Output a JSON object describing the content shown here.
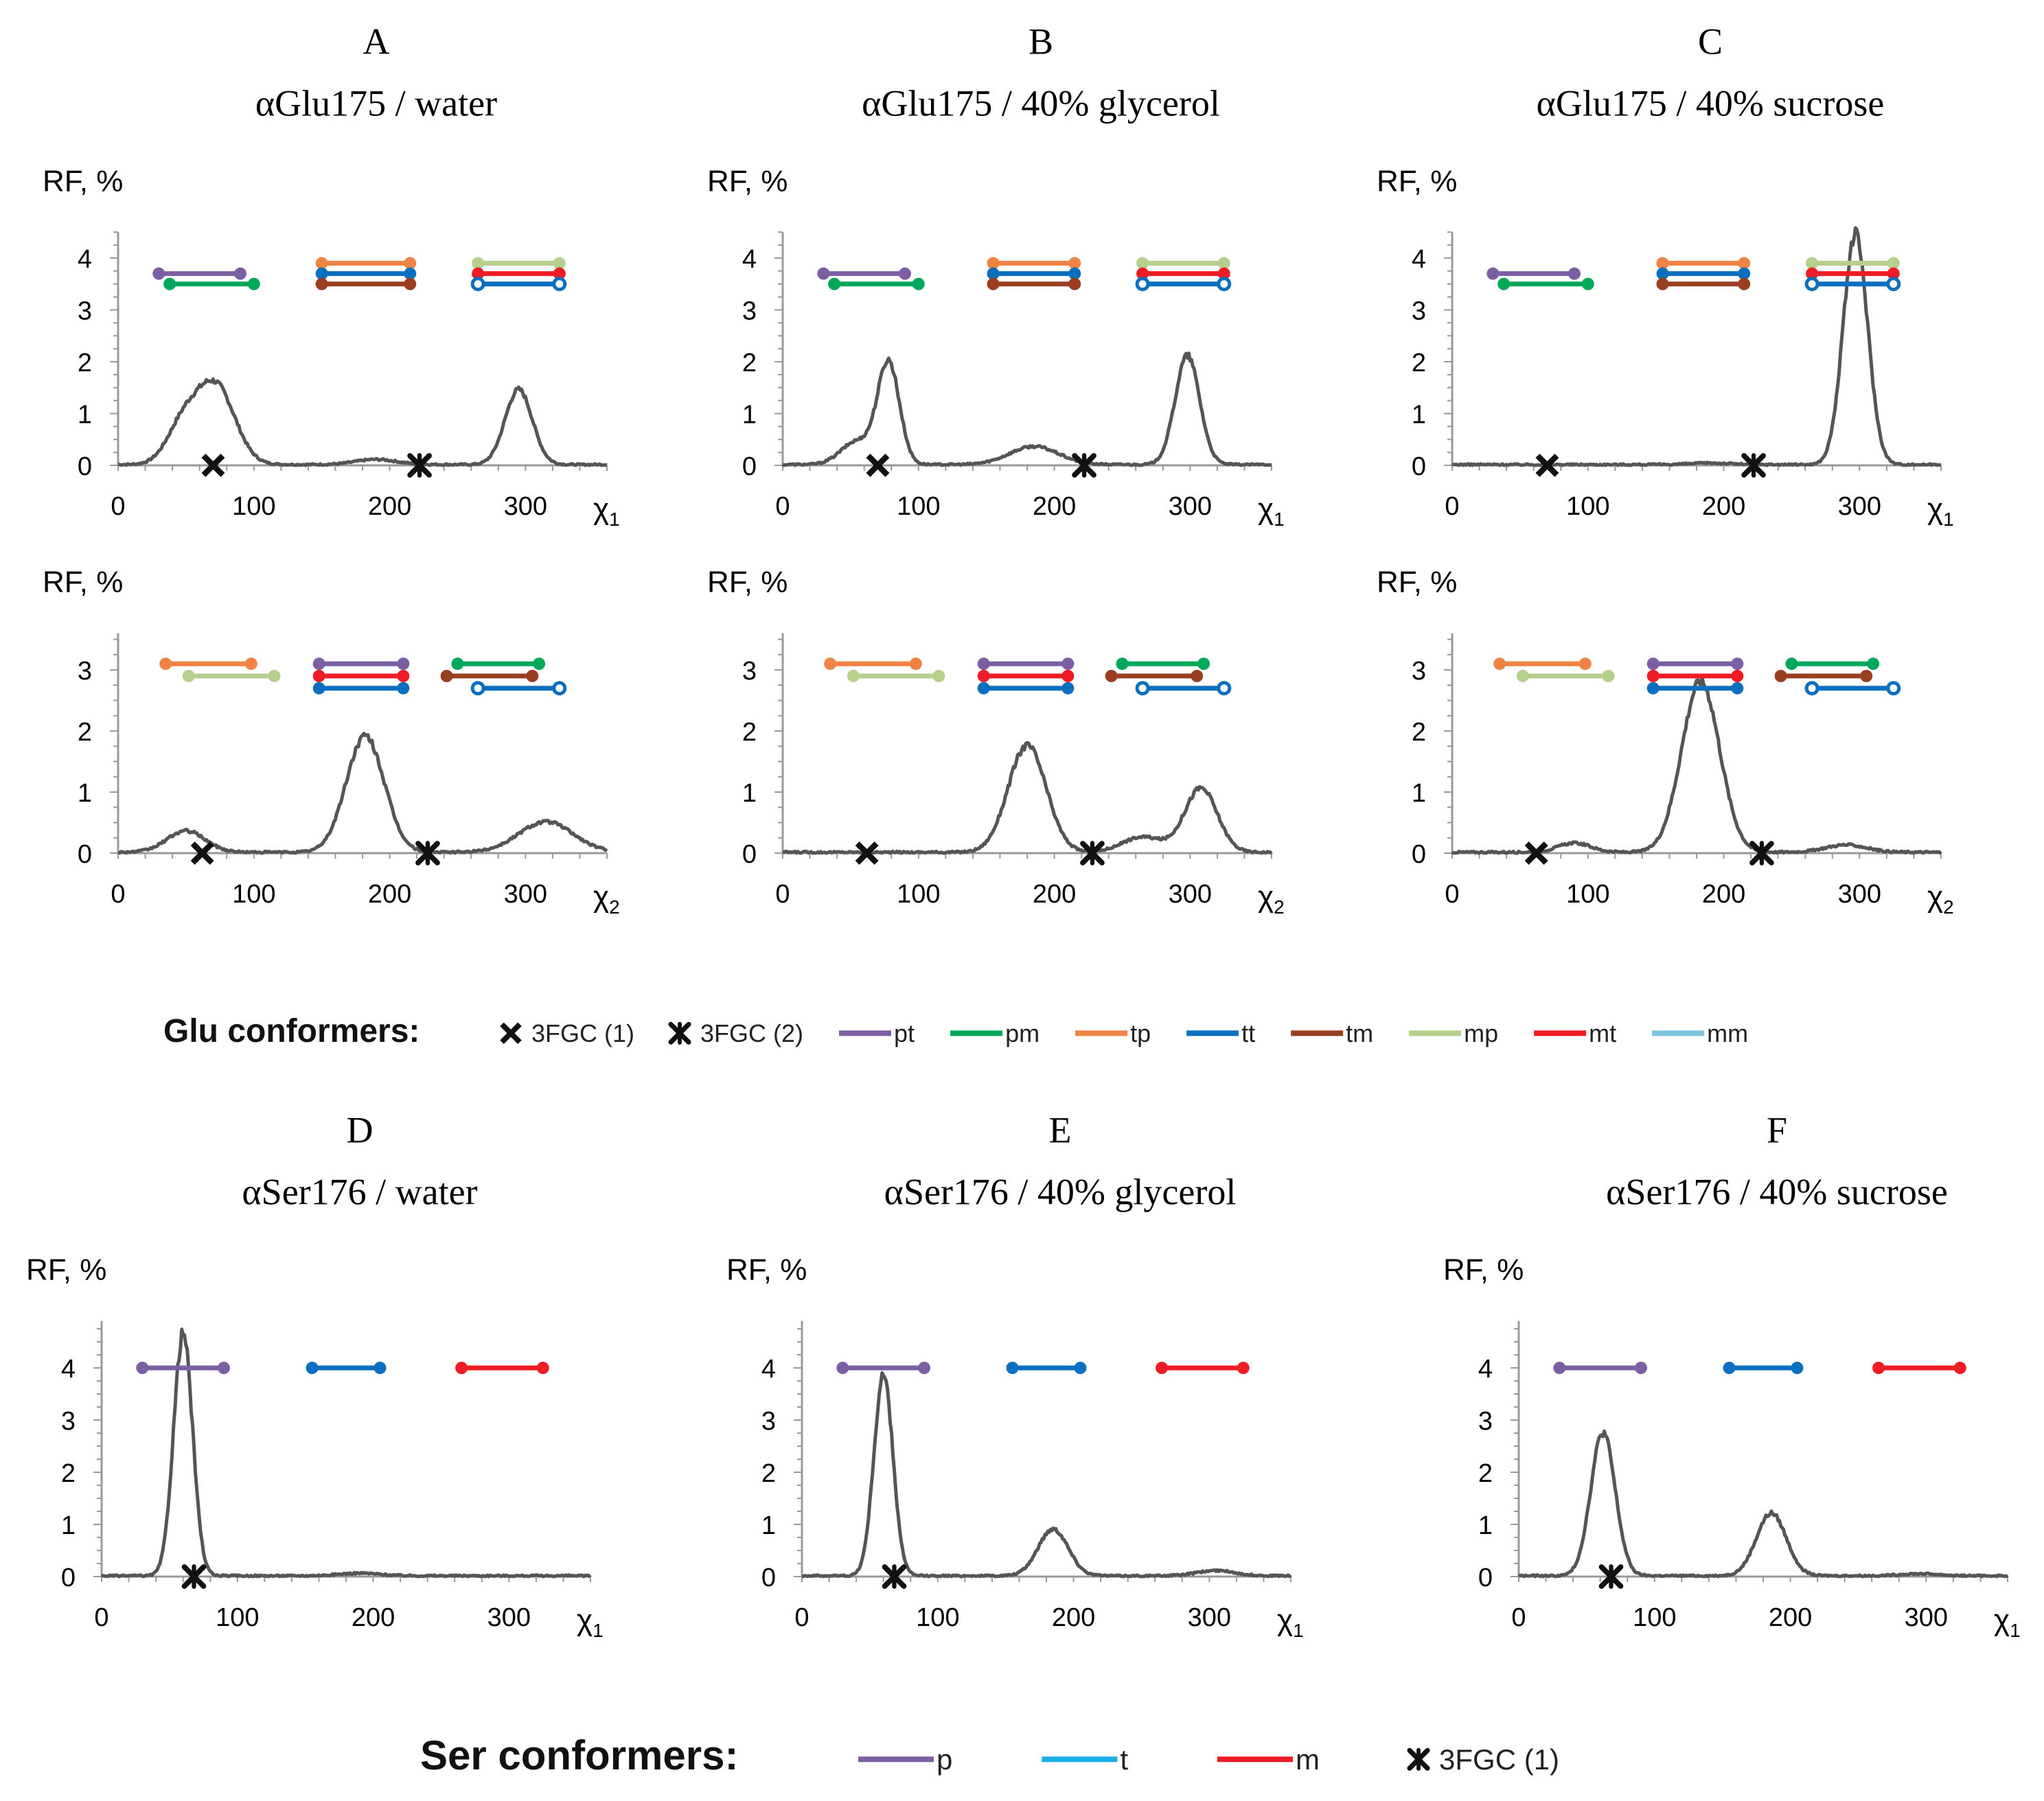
{
  "colors": {
    "pt": "#7b5fa2",
    "pm": "#00a85a",
    "tp": "#ee8344",
    "tt": "#0a6fbf",
    "tm": "#9a3e22",
    "mp": "#b5cf8c",
    "mt": "#ee1c24",
    "mm": "#7cc3dc",
    "p": "#7b5fa2",
    "t": "#1aaee6",
    "m": "#ee1c24",
    "curve": "#555555",
    "axis": "#999999",
    "marker": "#111111"
  },
  "legend_glu": {
    "title": "Glu conformers:",
    "items": [
      {
        "label": "3FGC (1)",
        "kind": "x",
        "color": "#111111"
      },
      {
        "label": "3FGC (2)",
        "kind": "star",
        "color": "#111111"
      },
      {
        "label": "pt",
        "kind": "line",
        "color": "#7b5fa2"
      },
      {
        "label": "pm",
        "kind": "line",
        "color": "#00a85a"
      },
      {
        "label": "tp",
        "kind": "line",
        "color": "#ee8344"
      },
      {
        "label": "tt",
        "kind": "line",
        "color": "#0a6fbf"
      },
      {
        "label": "tm",
        "kind": "line",
        "color": "#9a3e22"
      },
      {
        "label": "mp",
        "kind": "line",
        "color": "#b5cf8c"
      },
      {
        "label": "mt",
        "kind": "line",
        "color": "#ee1c24"
      },
      {
        "label": "mm",
        "kind": "line",
        "color": "#7cc3dc"
      }
    ]
  },
  "legend_ser": {
    "title": "Ser conformers:",
    "items": [
      {
        "label": "p",
        "kind": "line",
        "color": "#7b5fa2"
      },
      {
        "label": "t",
        "kind": "line",
        "color": "#1aaee6"
      },
      {
        "label": "m",
        "kind": "line",
        "color": "#ee1c24"
      },
      {
        "label": "3FGC (1)",
        "kind": "star",
        "color": "#111111"
      }
    ]
  },
  "chart_data": [
    {
      "id": "A1",
      "type": "line",
      "letter": "A",
      "title": "αGlu175 / water",
      "ylabel": "RF, %",
      "xlabel_base": "χ",
      "xlabel_sub": "1",
      "xlim": [
        0,
        360
      ],
      "ylim": [
        0,
        4.5
      ],
      "xticks": [
        0,
        100,
        200,
        300
      ],
      "yticks": [
        0,
        1,
        2,
        3,
        4
      ],
      "peaks": [
        [
          48,
          0.75,
          12
        ],
        [
          72,
          1.5,
          14
        ],
        [
          190,
          0.1,
          15
        ],
        [
          295,
          1.45,
          10
        ]
      ],
      "markers": [
        {
          "x": 70,
          "kind": "x"
        },
        {
          "x": 222,
          "kind": "star"
        }
      ],
      "ranges": [
        {
          "label": "pt",
          "x0": 30,
          "x1": 90,
          "y": 3.7,
          "color": "#7b5fa2",
          "open": false
        },
        {
          "label": "pm",
          "x0": 38,
          "x1": 100,
          "y": 3.5,
          "color": "#00a85a",
          "open": false
        },
        {
          "label": "tp",
          "x0": 150,
          "x1": 215,
          "y": 3.9,
          "color": "#ee8344",
          "open": false
        },
        {
          "label": "tt",
          "x0": 150,
          "x1": 215,
          "y": 3.7,
          "color": "#0a6fbf",
          "open": false
        },
        {
          "label": "tm",
          "x0": 150,
          "x1": 215,
          "y": 3.5,
          "color": "#9a3e22",
          "open": false
        },
        {
          "label": "mp",
          "x0": 265,
          "x1": 325,
          "y": 3.9,
          "color": "#b5cf8c",
          "open": false
        },
        {
          "label": "mt",
          "x0": 265,
          "x1": 325,
          "y": 3.7,
          "color": "#ee1c24",
          "open": false
        },
        {
          "label": "mm",
          "x0": 265,
          "x1": 325,
          "y": 3.5,
          "color": "#0a6fbf",
          "open": true
        }
      ]
    },
    {
      "id": "B1",
      "type": "line",
      "letter": "B",
      "title": "αGlu175 / 40% glycerol",
      "ylabel": "RF, %",
      "xlabel_base": "χ",
      "xlabel_sub": "1",
      "xlim": [
        0,
        360
      ],
      "ylim": [
        0,
        4.5
      ],
      "xticks": [
        0,
        100,
        200,
        300
      ],
      "yticks": [
        0,
        1,
        2,
        3,
        4
      ],
      "peaks": [
        [
          55,
          0.45,
          12
        ],
        [
          78,
          1.95,
          8
        ],
        [
          185,
          0.35,
          18
        ],
        [
          298,
          2.1,
          9
        ]
      ],
      "markers": [
        {
          "x": 70,
          "kind": "x"
        },
        {
          "x": 222,
          "kind": "star"
        }
      ],
      "ranges": [
        {
          "label": "pt",
          "x0": 30,
          "x1": 90,
          "y": 3.7,
          "color": "#7b5fa2",
          "open": false
        },
        {
          "label": "pm",
          "x0": 38,
          "x1": 100,
          "y": 3.5,
          "color": "#00a85a",
          "open": false
        },
        {
          "label": "tp",
          "x0": 155,
          "x1": 215,
          "y": 3.9,
          "color": "#ee8344",
          "open": false
        },
        {
          "label": "tt",
          "x0": 155,
          "x1": 215,
          "y": 3.7,
          "color": "#0a6fbf",
          "open": false
        },
        {
          "label": "tm",
          "x0": 155,
          "x1": 215,
          "y": 3.5,
          "color": "#9a3e22",
          "open": false
        },
        {
          "label": "mp",
          "x0": 265,
          "x1": 325,
          "y": 3.9,
          "color": "#b5cf8c",
          "open": false
        },
        {
          "label": "mt",
          "x0": 265,
          "x1": 325,
          "y": 3.7,
          "color": "#ee1c24",
          "open": false
        },
        {
          "label": "mm",
          "x0": 265,
          "x1": 325,
          "y": 3.5,
          "color": "#0a6fbf",
          "open": true
        }
      ]
    },
    {
      "id": "C1",
      "type": "line",
      "letter": "C",
      "title": "αGlu175 / 40% sucrose",
      "ylabel": "RF, %",
      "xlabel_base": "χ",
      "xlabel_sub": "1",
      "xlim": [
        0,
        360
      ],
      "ylim": [
        0,
        4.5
      ],
      "xticks": [
        0,
        100,
        200,
        300
      ],
      "yticks": [
        0,
        1,
        2,
        3,
        4
      ],
      "peaks": [
        [
          190,
          0.03,
          15
        ],
        [
          297,
          4.45,
          9
        ]
      ],
      "markers": [
        {
          "x": 70,
          "kind": "x"
        },
        {
          "x": 222,
          "kind": "star"
        }
      ],
      "ranges": [
        {
          "label": "pt",
          "x0": 30,
          "x1": 90,
          "y": 3.7,
          "color": "#7b5fa2",
          "open": false
        },
        {
          "label": "pm",
          "x0": 38,
          "x1": 100,
          "y": 3.5,
          "color": "#00a85a",
          "open": false
        },
        {
          "label": "tp",
          "x0": 155,
          "x1": 215,
          "y": 3.9,
          "color": "#ee8344",
          "open": false
        },
        {
          "label": "tt",
          "x0": 155,
          "x1": 215,
          "y": 3.7,
          "color": "#0a6fbf",
          "open": false
        },
        {
          "label": "tm",
          "x0": 155,
          "x1": 215,
          "y": 3.5,
          "color": "#9a3e22",
          "open": false
        },
        {
          "label": "mp",
          "x0": 265,
          "x1": 325,
          "y": 3.9,
          "color": "#b5cf8c",
          "open": false
        },
        {
          "label": "mt",
          "x0": 265,
          "x1": 325,
          "y": 3.7,
          "color": "#ee1c24",
          "open": false
        },
        {
          "label": "mm",
          "x0": 265,
          "x1": 325,
          "y": 3.5,
          "color": "#0a6fbf",
          "open": true
        }
      ]
    },
    {
      "id": "A2",
      "type": "line",
      "letter": "",
      "title": "",
      "ylabel": "RF, %",
      "xlabel_base": "χ",
      "xlabel_sub": "2",
      "xlim": [
        0,
        360
      ],
      "ylim": [
        0,
        3.6
      ],
      "xticks": [
        0,
        100,
        200,
        300
      ],
      "yticks": [
        0,
        1,
        2,
        3
      ],
      "peaks": [
        [
          50,
          0.35,
          14
        ],
        [
          182,
          1.9,
          14
        ],
        [
          315,
          0.5,
          20
        ]
      ],
      "markers": [
        {
          "x": 62,
          "kind": "x"
        },
        {
          "x": 228,
          "kind": "star"
        }
      ],
      "ranges": [
        {
          "label": "tp",
          "x0": 35,
          "x1": 98,
          "y": 3.1,
          "color": "#ee8344",
          "open": false
        },
        {
          "label": "mp",
          "x0": 52,
          "x1": 115,
          "y": 2.9,
          "color": "#b5cf8c",
          "open": false
        },
        {
          "label": "pt",
          "x0": 148,
          "x1": 210,
          "y": 3.1,
          "color": "#7b5fa2",
          "open": false
        },
        {
          "label": "mt",
          "x0": 148,
          "x1": 210,
          "y": 2.9,
          "color": "#ee1c24",
          "open": false
        },
        {
          "label": "tt",
          "x0": 148,
          "x1": 210,
          "y": 2.7,
          "color": "#0a6fbf",
          "open": false
        },
        {
          "label": "pm",
          "x0": 250,
          "x1": 310,
          "y": 3.1,
          "color": "#00a85a",
          "open": false
        },
        {
          "label": "tm",
          "x0": 242,
          "x1": 305,
          "y": 2.9,
          "color": "#9a3e22",
          "open": false
        },
        {
          "label": "mm",
          "x0": 265,
          "x1": 325,
          "y": 2.7,
          "color": "#0a6fbf",
          "open": true
        }
      ]
    },
    {
      "id": "B2",
      "type": "line",
      "letter": "",
      "title": "",
      "ylabel": "RF, %",
      "xlabel_base": "χ",
      "xlabel_sub": "2",
      "xlim": [
        0,
        360
      ],
      "ylim": [
        0,
        3.6
      ],
      "xticks": [
        0,
        100,
        200,
        300
      ],
      "yticks": [
        0,
        1,
        2,
        3
      ],
      "peaks": [
        [
          180,
          1.75,
          14
        ],
        [
          265,
          0.25,
          15
        ],
        [
          308,
          1.05,
          12
        ]
      ],
      "markers": [
        {
          "x": 62,
          "kind": "x"
        },
        {
          "x": 228,
          "kind": "star"
        }
      ],
      "ranges": [
        {
          "label": "tp",
          "x0": 35,
          "x1": 98,
          "y": 3.1,
          "color": "#ee8344",
          "open": false
        },
        {
          "label": "mp",
          "x0": 52,
          "x1": 115,
          "y": 2.9,
          "color": "#b5cf8c",
          "open": false
        },
        {
          "label": "pt",
          "x0": 148,
          "x1": 210,
          "y": 3.1,
          "color": "#7b5fa2",
          "open": false
        },
        {
          "label": "mt",
          "x0": 148,
          "x1": 210,
          "y": 2.9,
          "color": "#ee1c24",
          "open": false
        },
        {
          "label": "tt",
          "x0": 148,
          "x1": 210,
          "y": 2.7,
          "color": "#0a6fbf",
          "open": false
        },
        {
          "label": "pm",
          "x0": 250,
          "x1": 310,
          "y": 3.1,
          "color": "#00a85a",
          "open": false
        },
        {
          "label": "tm",
          "x0": 242,
          "x1": 305,
          "y": 2.9,
          "color": "#9a3e22",
          "open": false
        },
        {
          "label": "mm",
          "x0": 265,
          "x1": 325,
          "y": 2.7,
          "color": "#0a6fbf",
          "open": true
        }
      ]
    },
    {
      "id": "C2",
      "type": "line",
      "letter": "",
      "title": "",
      "ylabel": "RF, %",
      "xlabel_base": "χ",
      "xlabel_sub": "2",
      "xlim": [
        0,
        360
      ],
      "ylim": [
        0,
        3.6
      ],
      "xticks": [
        0,
        100,
        200,
        300
      ],
      "yticks": [
        0,
        1,
        2,
        3
      ],
      "peaks": [
        [
          90,
          0.15,
          12
        ],
        [
          183,
          2.8,
          14
        ],
        [
          290,
          0.12,
          15
        ]
      ],
      "markers": [
        {
          "x": 62,
          "kind": "x"
        },
        {
          "x": 228,
          "kind": "star"
        }
      ],
      "ranges": [
        {
          "label": "tp",
          "x0": 35,
          "x1": 98,
          "y": 3.1,
          "color": "#ee8344",
          "open": false
        },
        {
          "label": "mp",
          "x0": 52,
          "x1": 115,
          "y": 2.9,
          "color": "#b5cf8c",
          "open": false
        },
        {
          "label": "pt",
          "x0": 148,
          "x1": 210,
          "y": 3.1,
          "color": "#7b5fa2",
          "open": false
        },
        {
          "label": "mt",
          "x0": 148,
          "x1": 210,
          "y": 2.9,
          "color": "#ee1c24",
          "open": false
        },
        {
          "label": "tt",
          "x0": 148,
          "x1": 210,
          "y": 2.7,
          "color": "#0a6fbf",
          "open": false
        },
        {
          "label": "pm",
          "x0": 250,
          "x1": 310,
          "y": 3.1,
          "color": "#00a85a",
          "open": false
        },
        {
          "label": "tm",
          "x0": 242,
          "x1": 305,
          "y": 2.9,
          "color": "#9a3e22",
          "open": false
        },
        {
          "label": "mm",
          "x0": 265,
          "x1": 325,
          "y": 2.7,
          "color": "#0a6fbf",
          "open": true
        }
      ]
    },
    {
      "id": "D",
      "type": "line",
      "letter": "D",
      "title": "αSer176 / water",
      "ylabel": "RF, %",
      "xlabel_base": "χ",
      "xlabel_sub": "1",
      "xlim": [
        0,
        360
      ],
      "ylim": [
        0,
        4.9
      ],
      "xticks": [
        0,
        100,
        200,
        300
      ],
      "yticks": [
        0,
        1,
        2,
        3,
        4
      ],
      "peaks": [
        [
          60,
          4.65,
          7
        ],
        [
          190,
          0.05,
          15
        ]
      ],
      "markers": [
        {
          "x": 68,
          "kind": "star"
        }
      ],
      "ranges": [
        {
          "label": "p",
          "x0": 30,
          "x1": 90,
          "y": 4.0,
          "color": "#7b5fa2",
          "open": false
        },
        {
          "label": "t",
          "x0": 155,
          "x1": 205,
          "y": 4.0,
          "color": "#0a6fbf",
          "open": false
        },
        {
          "label": "m",
          "x0": 265,
          "x1": 325,
          "y": 4.0,
          "color": "#ee1c24",
          "open": false
        }
      ]
    },
    {
      "id": "E",
      "type": "line",
      "letter": "E",
      "title": "αSer176 / 40% glycerol",
      "ylabel": "RF, %",
      "xlabel_base": "χ",
      "xlabel_sub": "1",
      "xlim": [
        0,
        360
      ],
      "ylim": [
        0,
        4.9
      ],
      "xticks": [
        0,
        100,
        200,
        300
      ],
      "yticks": [
        0,
        1,
        2,
        3,
        4
      ],
      "peaks": [
        [
          60,
          3.85,
          7
        ],
        [
          185,
          0.9,
          11
        ],
        [
          305,
          0.1,
          14
        ]
      ],
      "markers": [
        {
          "x": 68,
          "kind": "star"
        }
      ],
      "ranges": [
        {
          "label": "p",
          "x0": 30,
          "x1": 90,
          "y": 4.0,
          "color": "#7b5fa2",
          "open": false
        },
        {
          "label": "t",
          "x0": 155,
          "x1": 205,
          "y": 4.0,
          "color": "#0a6fbf",
          "open": false
        },
        {
          "label": "m",
          "x0": 265,
          "x1": 325,
          "y": 4.0,
          "color": "#ee1c24",
          "open": false
        }
      ]
    },
    {
      "id": "F",
      "type": "line",
      "letter": "F",
      "title": "αSer176 / 40% sucrose",
      "ylabel": "RF, %",
      "xlabel_base": "χ",
      "xlabel_sub": "1",
      "xlim": [
        0,
        360
      ],
      "ylim": [
        0,
        4.9
      ],
      "xticks": [
        0,
        100,
        200,
        300
      ],
      "yticks": [
        0,
        1,
        2,
        3,
        4
      ],
      "peaks": [
        [
          62,
          2.75,
          9
        ],
        [
          186,
          1.2,
          11
        ],
        [
          295,
          0.04,
          14
        ]
      ],
      "markers": [
        {
          "x": 68,
          "kind": "star"
        }
      ],
      "ranges": [
        {
          "label": "p",
          "x0": 30,
          "x1": 90,
          "y": 4.0,
          "color": "#7b5fa2",
          "open": false
        },
        {
          "label": "t",
          "x0": 155,
          "x1": 205,
          "y": 4.0,
          "color": "#0a6fbf",
          "open": false
        },
        {
          "label": "m",
          "x0": 265,
          "x1": 325,
          "y": 4.0,
          "color": "#ee1c24",
          "open": false
        }
      ]
    }
  ]
}
